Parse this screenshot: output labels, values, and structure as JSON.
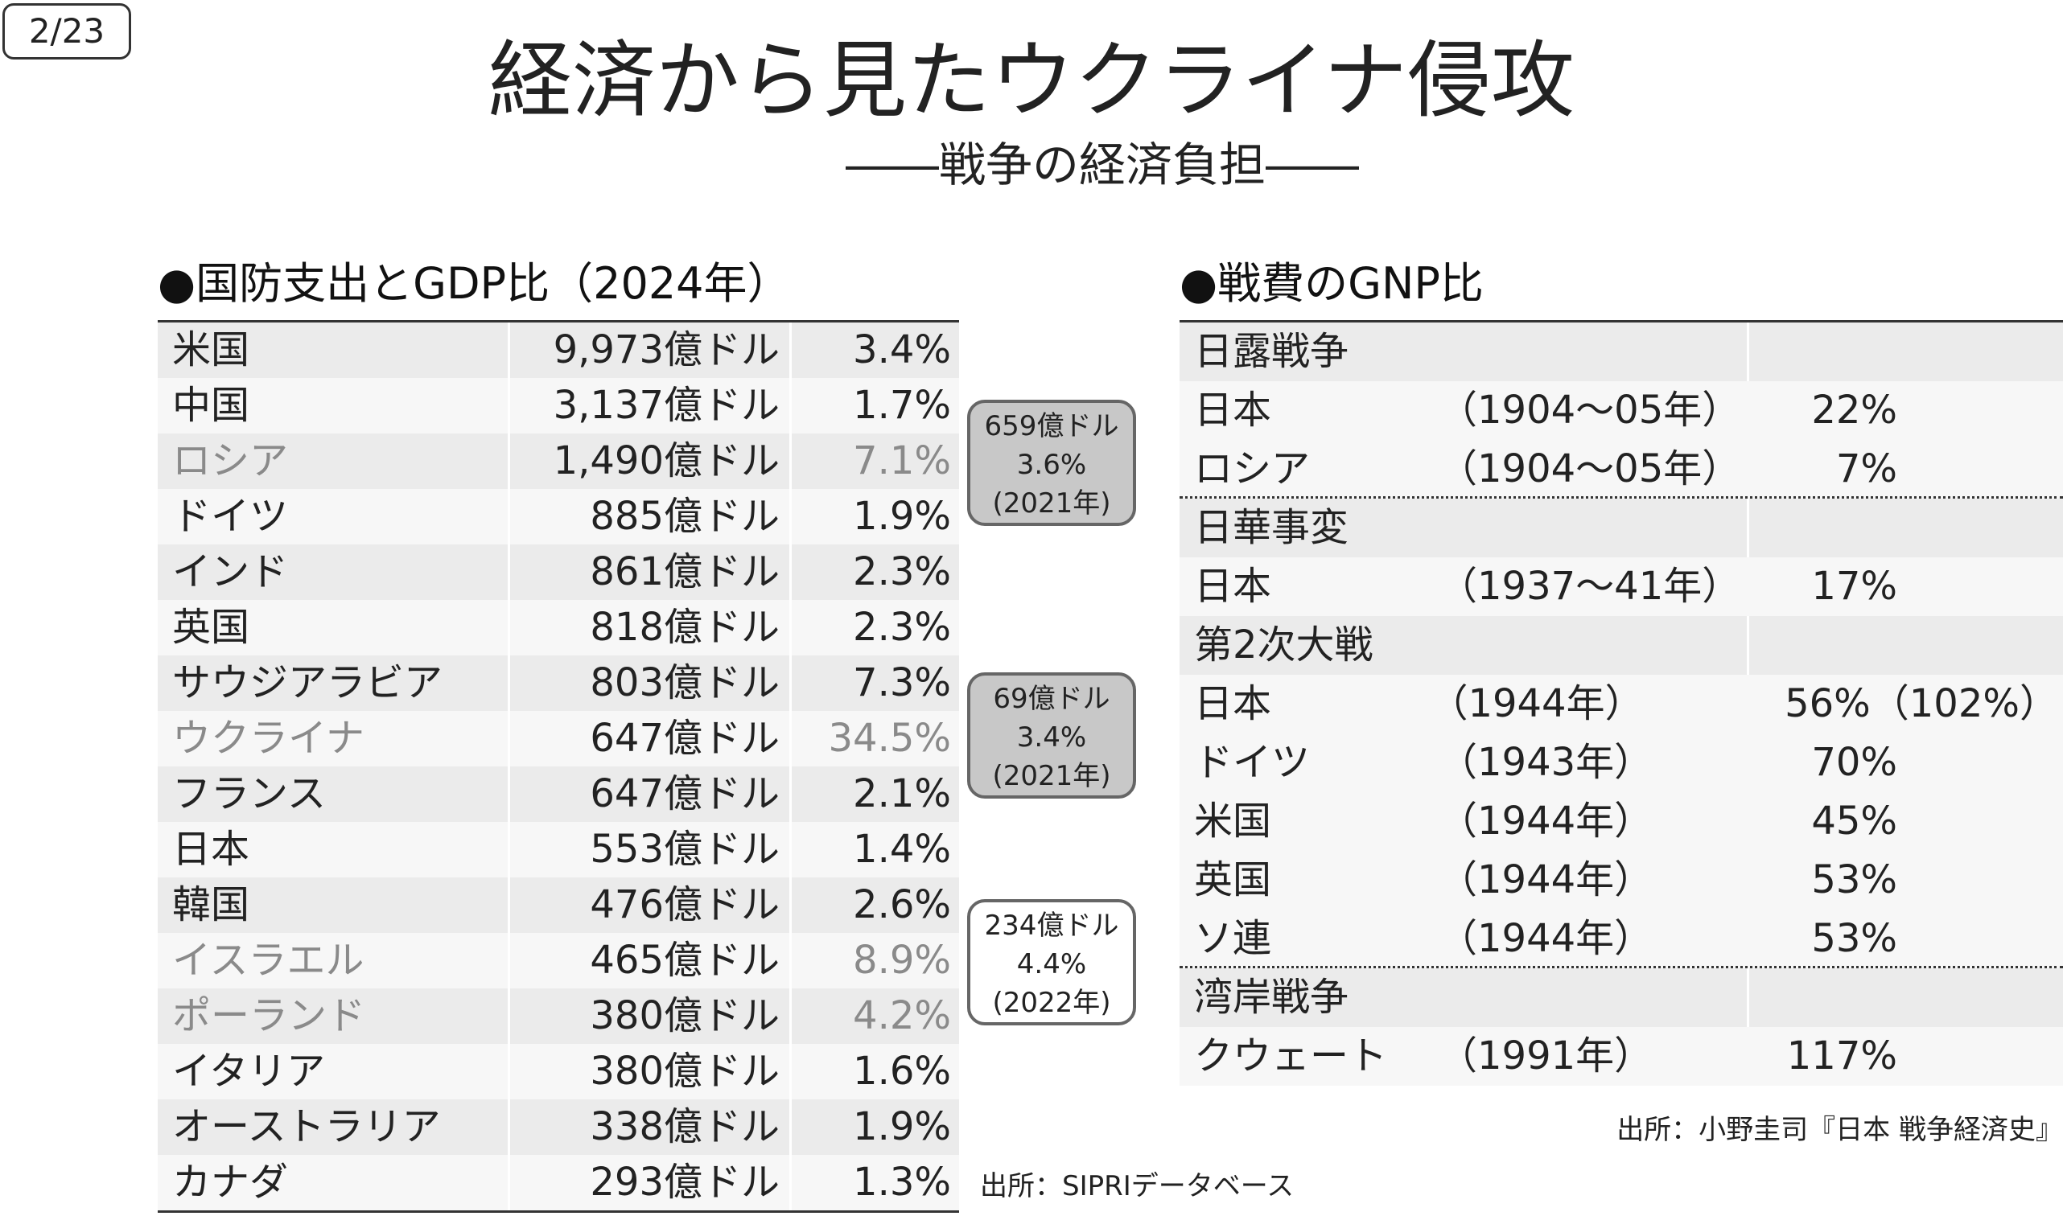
{
  "page_number": "2/23",
  "title": "経済から見たウクライナ侵攻",
  "subtitle": "――戦争の経済負担――",
  "left": {
    "heading": "●国防支出とGDP比（2024年）",
    "rows": [
      {
        "country": "米国",
        "amount": "9,973億ドル",
        "pct": "3.4%",
        "muted": false
      },
      {
        "country": "中国",
        "amount": "3,137億ドル",
        "pct": "1.7%",
        "muted": false
      },
      {
        "country": "ロシア",
        "amount": "1,490億ドル",
        "pct": "7.1%",
        "muted": true
      },
      {
        "country": "ドイツ",
        "amount": "885億ドル",
        "pct": "1.9%",
        "muted": false
      },
      {
        "country": "インド",
        "amount": "861億ドル",
        "pct": "2.3%",
        "muted": false
      },
      {
        "country": "英国",
        "amount": "818億ドル",
        "pct": "2.3%",
        "muted": false
      },
      {
        "country": "サウジアラビア",
        "amount": "803億ドル",
        "pct": "7.3%",
        "muted": false
      },
      {
        "country": "ウクライナ",
        "amount": "647億ドル",
        "pct": "34.5%",
        "muted": true
      },
      {
        "country": "フランス",
        "amount": "647億ドル",
        "pct": "2.1%",
        "muted": false
      },
      {
        "country": "日本",
        "amount": "553億ドル",
        "pct": "1.4%",
        "muted": false
      },
      {
        "country": "韓国",
        "amount": "476億ドル",
        "pct": "2.6%",
        "muted": false
      },
      {
        "country": "イスラエル",
        "amount": "465億ドル",
        "pct": "8.9%",
        "muted": true
      },
      {
        "country": "ポーランド",
        "amount": "380億ドル",
        "pct": "4.2%",
        "muted": true
      },
      {
        "country": "イタリア",
        "amount": "380億ドル",
        "pct": "1.6%",
        "muted": false
      },
      {
        "country": "オーストラリア",
        "amount": "338億ドル",
        "pct": "1.9%",
        "muted": false
      },
      {
        "country": "カナダ",
        "amount": "293億ドル",
        "pct": "1.3%",
        "muted": false
      }
    ],
    "callouts": {
      "russia": {
        "line1": "659億ドル",
        "line2": "3.6%",
        "line3": "(2021年)"
      },
      "ukraine": {
        "line1": "69億ドル",
        "line2": "3.4%",
        "line3": "(2021年)"
      },
      "israel": {
        "line1": "234億ドル",
        "line2": "4.4%",
        "line3": "(2022年)"
      }
    },
    "source": "出所：SIPRIデータベース"
  },
  "right": {
    "heading": "●戦費のGNP比",
    "rows": [
      {
        "type": "cat",
        "label": "日露戦争",
        "sep": false
      },
      {
        "type": "item",
        "country": "日本",
        "period": "（1904～05年）",
        "pct": "22%",
        "extra": "",
        "sep": false
      },
      {
        "type": "item",
        "country": "ロシア",
        "period": "（1904～05年）",
        "pct": "7%",
        "extra": "",
        "sep": true
      },
      {
        "type": "cat",
        "label": "日華事変",
        "sep": false
      },
      {
        "type": "item",
        "country": "日本",
        "period": "（1937～41年）",
        "pct": "17%",
        "extra": "",
        "sep": false
      },
      {
        "type": "cat",
        "label": "第2次大戦",
        "sep": false
      },
      {
        "type": "item",
        "country": "日本",
        "period": "（1944年）",
        "pct": "56%",
        "extra": "（102%）",
        "sep": false
      },
      {
        "type": "item",
        "country": "ドイツ",
        "period": "（1943年）",
        "pct": "70%",
        "extra": "",
        "sep": false
      },
      {
        "type": "item",
        "country": "米国",
        "period": "（1944年）",
        "pct": "45%",
        "extra": "",
        "sep": false
      },
      {
        "type": "item",
        "country": "英国",
        "period": "（1944年）",
        "pct": "53%",
        "extra": "",
        "sep": false
      },
      {
        "type": "item",
        "country": "ソ連",
        "period": "（1944年）",
        "pct": "53%",
        "extra": "",
        "sep": true
      },
      {
        "type": "cat",
        "label": "湾岸戦争",
        "sep": false
      },
      {
        "type": "item",
        "country": "クウェート",
        "period": "（1991年）",
        "pct": "117%",
        "extra": "",
        "sep": false
      }
    ],
    "source": "出所：小野圭司『日本 戦争経済史』"
  }
}
